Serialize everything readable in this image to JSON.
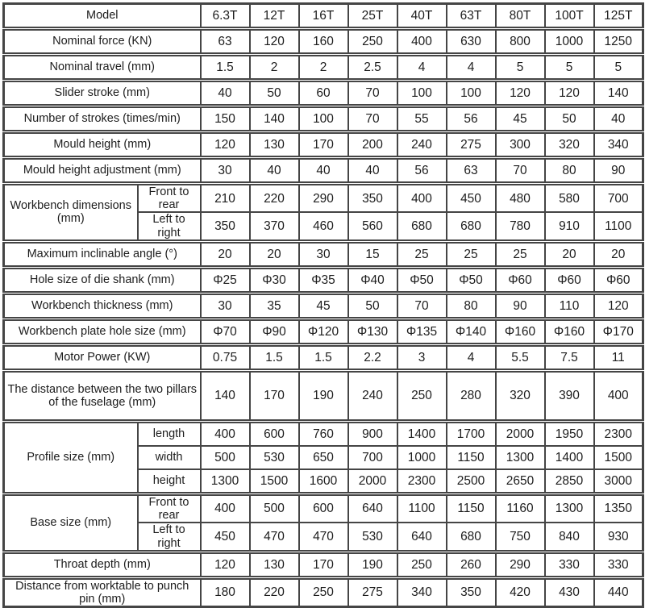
{
  "table": {
    "models": [
      "6.3T",
      "12T",
      "16T",
      "25T",
      "40T",
      "63T",
      "80T",
      "100T",
      "125T"
    ],
    "rows": [
      {
        "label": "Model",
        "values": [
          "6.3T",
          "12T",
          "16T",
          "25T",
          "40T",
          "63T",
          "80T",
          "100T",
          "125T"
        ]
      },
      {
        "label": "Nominal force (KN)",
        "values": [
          "63",
          "120",
          "160",
          "250",
          "400",
          "630",
          "800",
          "1000",
          "1250"
        ]
      },
      {
        "label": "Nominal travel (mm)",
        "values": [
          "1.5",
          "2",
          "2",
          "2.5",
          "4",
          "4",
          "5",
          "5",
          "5"
        ]
      },
      {
        "label": "Slider stroke (mm)",
        "values": [
          "40",
          "50",
          "60",
          "70",
          "100",
          "100",
          "120",
          "120",
          "140"
        ]
      },
      {
        "label": "Number of strokes (times/min)",
        "values": [
          "150",
          "140",
          "100",
          "70",
          "55",
          "56",
          "45",
          "50",
          "40"
        ]
      },
      {
        "label": "Mould height (mm)",
        "values": [
          "120",
          "130",
          "170",
          "200",
          "240",
          "275",
          "300",
          "320",
          "340"
        ]
      },
      {
        "label": "Mould height adjustment (mm)",
        "values": [
          "30",
          "40",
          "40",
          "40",
          "56",
          "63",
          "70",
          "80",
          "90"
        ]
      },
      {
        "label": "Workbench dimensions (mm)",
        "subrows": [
          {
            "label": "Front to rear",
            "values": [
              "210",
              "220",
              "290",
              "350",
              "400",
              "450",
              "480",
              "580",
              "700"
            ]
          },
          {
            "label": "Left to right",
            "values": [
              "350",
              "370",
              "460",
              "560",
              "680",
              "680",
              "780",
              "910",
              "1100"
            ]
          }
        ]
      },
      {
        "label": "Maximum inclinable angle (°)",
        "values": [
          "20",
          "20",
          "30",
          "15",
          "25",
          "25",
          "25",
          "20",
          "20"
        ]
      },
      {
        "label": "Hole size of die shank (mm)",
        "values": [
          "Φ25",
          "Φ30",
          "Φ35",
          "Φ40",
          "Φ50",
          "Φ50",
          "Φ60",
          "Φ60",
          "Φ60"
        ]
      },
      {
        "label": "Workbench thickness (mm)",
        "values": [
          "30",
          "35",
          "45",
          "50",
          "70",
          "80",
          "90",
          "110",
          "120"
        ]
      },
      {
        "label": "Workbench plate hole size (mm)",
        "values": [
          "Φ70",
          "Φ90",
          "Φ120",
          "Φ130",
          "Φ135",
          "Φ140",
          "Φ160",
          "Φ160",
          "Φ170"
        ]
      },
      {
        "label": "Motor Power (KW)",
        "values": [
          "0.75",
          "1.5",
          "1.5",
          "2.2",
          "3",
          "4",
          "5.5",
          "7.5",
          "11"
        ]
      },
      {
        "label": "The distance between the two pillars of the fuselage (mm)",
        "tall": true,
        "values": [
          "140",
          "170",
          "190",
          "240",
          "250",
          "280",
          "320",
          "390",
          "400"
        ]
      },
      {
        "label": "Profile size (mm)",
        "subrows": [
          {
            "label": "length",
            "values": [
              "400",
              "600",
              "760",
              "900",
              "1400",
              "1700",
              "2000",
              "1950",
              "2300"
            ]
          },
          {
            "label": "width",
            "values": [
              "500",
              "530",
              "650",
              "700",
              "1000",
              "1150",
              "1300",
              "1400",
              "1500"
            ]
          },
          {
            "label": "height",
            "values": [
              "1300",
              "1500",
              "1600",
              "2000",
              "2300",
              "2500",
              "2650",
              "2850",
              "3000"
            ]
          }
        ]
      },
      {
        "label": "Base size (mm)",
        "subrows": [
          {
            "label": "Front to rear",
            "values": [
              "400",
              "500",
              "600",
              "640",
              "1100",
              "1150",
              "1160",
              "1300",
              "1350"
            ]
          },
          {
            "label": "Left to right",
            "values": [
              "450",
              "470",
              "470",
              "530",
              "640",
              "680",
              "750",
              "840",
              "930"
            ]
          }
        ]
      },
      {
        "label": "Throat depth (mm)",
        "values": [
          "120",
          "130",
          "170",
          "190",
          "250",
          "260",
          "290",
          "330",
          "330"
        ]
      },
      {
        "label": "Distance from worktable to punch pin (mm)",
        "values": [
          "180",
          "220",
          "250",
          "275",
          "340",
          "350",
          "420",
          "430",
          "440"
        ]
      }
    ],
    "colors": {
      "border": "#454545",
      "text": "#1d1d1d",
      "background": "#ffffff"
    }
  }
}
